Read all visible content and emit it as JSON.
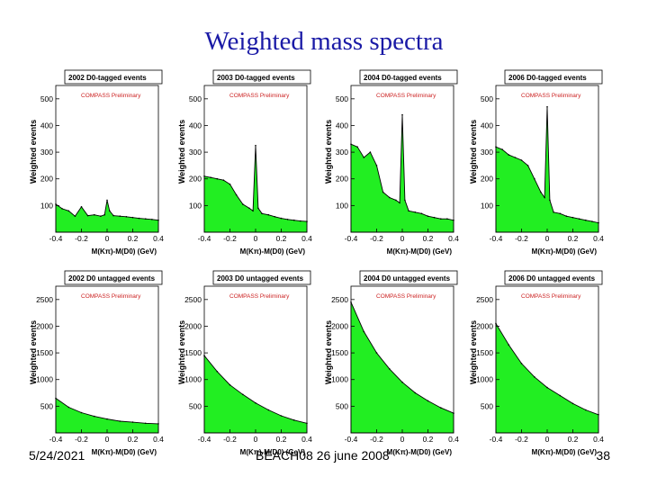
{
  "slide": {
    "title": "Weighted mass spectra",
    "footer_date": "5/24/2021",
    "footer_center": "BEACH08 26 june 2008",
    "page_number": "38"
  },
  "colors": {
    "fill": "#22ee22",
    "stroke": "#000000",
    "label": "#cc2222",
    "title": "#1a1aa6"
  },
  "chart_data": [
    {
      "type": "area",
      "title": "2002 D0-tagged events",
      "watermark": "COMPASS Preliminary",
      "xlabel": "M(Kπ)-M(D0) (GeV)",
      "ylabel": "Weighted events",
      "xlim": [
        -0.4,
        0.4
      ],
      "ylim": [
        0,
        550
      ],
      "yticks": [
        100,
        200,
        300,
        400,
        500
      ],
      "xticks": [
        -0.4,
        -0.2,
        0,
        0.2,
        0.4
      ],
      "x": [
        -0.4,
        -0.35,
        -0.3,
        -0.25,
        -0.2,
        -0.15,
        -0.1,
        -0.05,
        -0.02,
        0,
        0.02,
        0.05,
        0.1,
        0.15,
        0.2,
        0.25,
        0.3,
        0.35,
        0.4
      ],
      "y": [
        105,
        88,
        80,
        60,
        95,
        62,
        65,
        60,
        65,
        120,
        80,
        62,
        60,
        58,
        55,
        52,
        50,
        48,
        45
      ]
    },
    {
      "type": "area",
      "title": "2003 D0-tagged events",
      "watermark": "COMPASS Preliminary",
      "xlabel": "M(Kπ)-M(D0) (GeV)",
      "ylabel": "Weighted events",
      "xlim": [
        -0.4,
        0.4
      ],
      "ylim": [
        0,
        550
      ],
      "yticks": [
        100,
        200,
        300,
        400,
        500
      ],
      "xticks": [
        -0.4,
        -0.2,
        0,
        0.2,
        0.4
      ],
      "x": [
        -0.4,
        -0.35,
        -0.3,
        -0.25,
        -0.2,
        -0.15,
        -0.1,
        -0.05,
        -0.02,
        0,
        0.02,
        0.05,
        0.1,
        0.15,
        0.2,
        0.25,
        0.3,
        0.35,
        0.4
      ],
      "y": [
        210,
        205,
        200,
        195,
        180,
        140,
        105,
        90,
        80,
        325,
        90,
        70,
        65,
        58,
        52,
        48,
        45,
        42,
        40
      ]
    },
    {
      "type": "area",
      "title": "2004 D0-tagged events",
      "watermark": "COMPASS Preliminary",
      "xlabel": "M(Kπ)-M(D0) (GeV)",
      "ylabel": "Weighted events",
      "xlim": [
        -0.4,
        0.4
      ],
      "ylim": [
        0,
        550
      ],
      "yticks": [
        100,
        200,
        300,
        400,
        500
      ],
      "xticks": [
        -0.4,
        -0.2,
        0,
        0.2,
        0.4
      ],
      "x": [
        -0.4,
        -0.35,
        -0.3,
        -0.25,
        -0.2,
        -0.15,
        -0.1,
        -0.05,
        -0.02,
        0,
        0.02,
        0.05,
        0.1,
        0.15,
        0.2,
        0.25,
        0.3,
        0.35,
        0.4
      ],
      "y": [
        330,
        320,
        280,
        300,
        250,
        150,
        130,
        120,
        110,
        440,
        120,
        80,
        75,
        70,
        60,
        55,
        50,
        50,
        45
      ]
    },
    {
      "type": "area",
      "title": "2006 D0-tagged events",
      "watermark": "COMPASS Preliminary",
      "xlabel": "M(Kπ)-M(D0) (GeV)",
      "ylabel": "Weighted events",
      "xlim": [
        -0.4,
        0.4
      ],
      "ylim": [
        0,
        550
      ],
      "yticks": [
        100,
        200,
        300,
        400,
        500
      ],
      "xticks": [
        -0.4,
        -0.2,
        0,
        0.2,
        0.4
      ],
      "x": [
        -0.4,
        -0.35,
        -0.3,
        -0.25,
        -0.2,
        -0.15,
        -0.1,
        -0.05,
        -0.02,
        0,
        0.02,
        0.05,
        0.1,
        0.15,
        0.2,
        0.25,
        0.3,
        0.35,
        0.4
      ],
      "y": [
        320,
        310,
        290,
        280,
        270,
        250,
        200,
        150,
        130,
        470,
        120,
        75,
        70,
        60,
        55,
        50,
        45,
        40,
        35
      ]
    },
    {
      "type": "area",
      "title": "2002 D0 untagged events",
      "watermark": "COMPASS Preliminary",
      "xlabel": "M(Kπ)-M(D0) (GeV)",
      "ylabel": "Weighted events",
      "xlim": [
        -0.4,
        0.4
      ],
      "ylim": [
        0,
        2750
      ],
      "yticks": [
        500,
        1000,
        1500,
        2000,
        2500
      ],
      "xticks": [
        -0.4,
        -0.2,
        0,
        0.2,
        0.4
      ],
      "x": [
        -0.4,
        -0.3,
        -0.2,
        -0.1,
        0,
        0.1,
        0.2,
        0.3,
        0.4
      ],
      "y": [
        650,
        480,
        380,
        310,
        260,
        220,
        200,
        180,
        170
      ]
    },
    {
      "type": "area",
      "title": "2003 D0 untagged events",
      "watermark": "COMPASS Preliminary",
      "xlabel": "M(Kπ)-M(D0) (GeV)",
      "ylabel": "Weighted events",
      "xlim": [
        -0.4,
        0.4
      ],
      "ylim": [
        0,
        2750
      ],
      "yticks": [
        500,
        1000,
        1500,
        2000,
        2500
      ],
      "xticks": [
        -0.4,
        -0.2,
        0,
        0.2,
        0.4
      ],
      "x": [
        -0.4,
        -0.3,
        -0.2,
        -0.1,
        0,
        0.1,
        0.2,
        0.3,
        0.4
      ],
      "y": [
        1450,
        1150,
        900,
        720,
        560,
        430,
        320,
        240,
        180
      ]
    },
    {
      "type": "area",
      "title": "2004 D0 untagged events",
      "watermark": "COMPASS Preliminary",
      "xlabel": "M(Kπ)-M(D0) (GeV)",
      "ylabel": "Weighted events",
      "xlim": [
        -0.4,
        0.4
      ],
      "ylim": [
        0,
        2750
      ],
      "yticks": [
        500,
        1000,
        1500,
        2000,
        2500
      ],
      "xticks": [
        -0.4,
        -0.2,
        0,
        0.2,
        0.4
      ],
      "x": [
        -0.4,
        -0.3,
        -0.2,
        -0.1,
        0,
        0.1,
        0.2,
        0.3,
        0.4
      ],
      "y": [
        2450,
        1900,
        1500,
        1200,
        950,
        750,
        600,
        470,
        370
      ]
    },
    {
      "type": "area",
      "title": "2006 D0 untagged events",
      "watermark": "COMPASS Preliminary",
      "xlabel": "M(Kπ)-M(D0) (GeV)",
      "ylabel": "Weighted events",
      "xlim": [
        -0.4,
        0.4
      ],
      "ylim": [
        0,
        2750
      ],
      "yticks": [
        500,
        1000,
        1500,
        2000,
        2500
      ],
      "xticks": [
        -0.4,
        -0.2,
        0,
        0.2,
        0.4
      ],
      "x": [
        -0.4,
        -0.3,
        -0.2,
        -0.1,
        0,
        0.1,
        0.2,
        0.3,
        0.4
      ],
      "y": [
        2050,
        1650,
        1300,
        1050,
        850,
        700,
        550,
        430,
        340
      ]
    }
  ]
}
